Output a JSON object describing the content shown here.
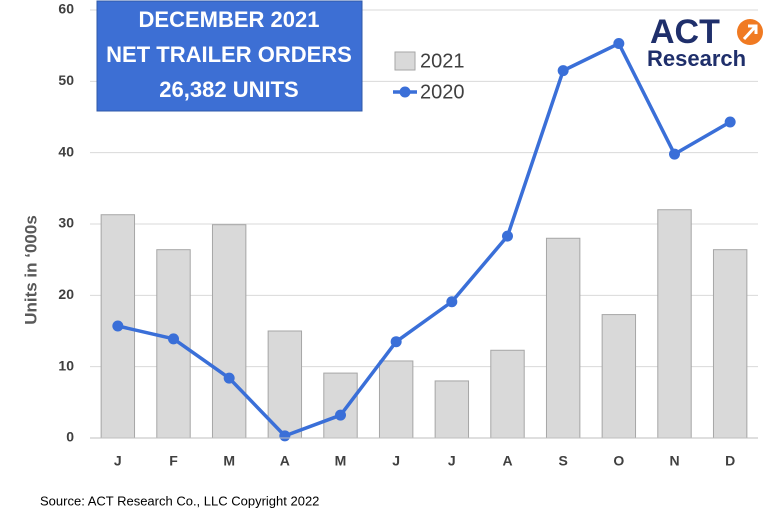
{
  "chart_data": {
    "type": "bar",
    "title_lines": [
      "DECEMBER 2021",
      "NET TRAILER ORDERS",
      "26,382 UNITS"
    ],
    "y_label": "Units in ‘000s",
    "source": "Source: ACT Research Co., LLC  Copyright 2022",
    "logo": [
      "ACT",
      "Research"
    ],
    "categories": [
      "J",
      "F",
      "M",
      "A",
      "M",
      "J",
      "J",
      "A",
      "S",
      "O",
      "N",
      "D"
    ],
    "series": [
      {
        "name": "2021",
        "type": "bar",
        "color": "#d9d9d9",
        "values": [
          31.3,
          26.4,
          29.9,
          15.0,
          9.1,
          10.8,
          8.0,
          12.3,
          28.0,
          17.3,
          32.0,
          26.4
        ]
      },
      {
        "name": "2020",
        "type": "line",
        "color": "#3a6fd8",
        "values": [
          15.7,
          13.9,
          8.4,
          0.3,
          3.2,
          13.5,
          19.1,
          28.3,
          51.5,
          55.3,
          39.8,
          44.3
        ]
      }
    ],
    "ylim": [
      0,
      60
    ],
    "yticks": [
      0,
      10,
      20,
      30,
      40,
      50,
      60
    ],
    "grid": true
  }
}
